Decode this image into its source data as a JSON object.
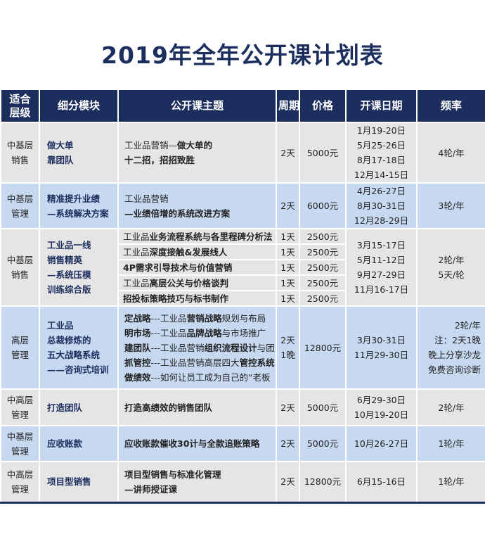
{
  "title": "2019年全年公开课计划表",
  "header": [
    "适合层级",
    "细分模块",
    "公开课主题",
    "周期",
    "价格",
    "开课日期",
    "频率"
  ],
  "rows": [
    {
      "shade": "gray",
      "level": [
        "中基层",
        "销售"
      ],
      "module": [
        "做大单",
        "靠团队"
      ],
      "theme": [
        [
          {
            "text": "工业品营销—"
          },
          {
            "text": "做大单的",
            "bold": true
          }
        ],
        [
          {
            "text": "十二招，招招致胜",
            "bold": true
          }
        ]
      ],
      "duration": [
        "2天"
      ],
      "price": "5000元",
      "dates": [
        "1月19-20日",
        "5月25-26日",
        "8月17-18日",
        "12月14-15日"
      ],
      "freq": [
        "4轮/年"
      ]
    },
    {
      "shade": "blue",
      "level": [
        "中基层",
        "管理"
      ],
      "module": [
        "精准提升业绩",
        "—系统解决方案"
      ],
      "theme": [
        [
          {
            "text": " 工业品营销"
          }
        ],
        [
          {
            "text": "—业绩倍增的系统改进方案",
            "bold": true
          }
        ]
      ],
      "duration": [
        "2天"
      ],
      "price": "6000元",
      "dates": [
        "4月26-27日",
        "8月30-31日",
        "12月28-29日"
      ],
      "freq": [
        "3轮/年"
      ]
    },
    {
      "shade": "gray",
      "level": [
        "中基层",
        "销售"
      ],
      "module": [
        "工业品一线",
        "销售精英",
        "—系统压模",
        "训练综合版"
      ],
      "sessions": [
        {
          "theme": [
            {
              "text": "工业品"
            },
            {
              "text": "业务流程系统与各里程碑分析法",
              "bold": true
            }
          ],
          "duration": "1天",
          "price": "2500元"
        },
        {
          "theme": [
            {
              "text": "工业品"
            },
            {
              "text": "深度接触&发展线人",
              "bold": true
            }
          ],
          "duration": "1天",
          "price": "2500元"
        },
        {
          "theme": [
            {
              "text": "4P需求引导技术与价值营销",
              "bold": true
            }
          ],
          "duration": "1天",
          "price": "2500元"
        },
        {
          "theme": [
            {
              "text": "工业品"
            },
            {
              "text": "高层公关与价格谈判",
              "bold": true
            }
          ],
          "duration": "1天",
          "price": "2500元"
        },
        {
          "theme": [
            {
              "text": "招投标策略技巧与标书制作",
              "bold": true
            }
          ],
          "duration": "1天",
          "price": "2500元"
        }
      ],
      "dates": [
        "3月15-17日",
        "5月11-12日",
        "9月27-29日",
        "11月16-17日"
      ],
      "freq": [
        "2轮/年",
        "5天/轮"
      ]
    },
    {
      "shade": "blue",
      "level": [
        "高层",
        "管理"
      ],
      "module": [
        "工业品",
        "总裁修炼的",
        "五大战略系统",
        "——咨询式培训"
      ],
      "theme": [
        [
          {
            "text": "定战略",
            "bold": true
          },
          {
            "text": "---工业品"
          },
          {
            "text": "营销战略",
            "bold": true
          },
          {
            "text": "规划与布局"
          }
        ],
        [
          {
            "text": "明市场",
            "bold": true
          },
          {
            "text": "---工业品"
          },
          {
            "text": "品牌战略",
            "bold": true
          },
          {
            "text": "与市场推广"
          }
        ],
        [
          {
            "text": "建团队",
            "bold": true
          },
          {
            "text": "---工业品营销"
          },
          {
            "text": "组织流程设计",
            "bold": true
          },
          {
            "text": "与团队管控"
          }
        ],
        [
          {
            "text": "抓管控",
            "bold": true
          },
          {
            "text": "---工业品营销高层四大"
          },
          {
            "text": "管控系统",
            "bold": true
          }
        ],
        [
          {
            "text": "做绩效",
            "bold": true
          },
          {
            "text": "---如何让员工成为自己的“老板"
          }
        ]
      ],
      "duration": [
        "2天",
        "1晚"
      ],
      "price": "12800元",
      "dates": [
        "3月30-31日",
        "11月29-30日"
      ],
      "freq": [
        "2轮/年",
        "注：2天1晚",
        "晚上分享沙龙",
        "免费咨询诊断"
      ]
    },
    {
      "shade": "gray",
      "level": [
        "中高层",
        "管理"
      ],
      "module": [
        "打造团队"
      ],
      "theme": [
        [
          {
            "text": "打造高绩效的销售团队",
            "bold": true
          }
        ]
      ],
      "duration": [
        "2天"
      ],
      "price": "5000元",
      "dates": [
        "6月29-30日",
        "10月19-20日"
      ],
      "freq": [
        "2轮/年"
      ]
    },
    {
      "shade": "blue",
      "level": [
        "中基层",
        "管理"
      ],
      "module": [
        "应收账款"
      ],
      "theme": [
        [
          {
            "text": "应收账款催收30计与全款追账策略",
            "bold": true
          }
        ]
      ],
      "duration": [
        "2天"
      ],
      "price": "5000元",
      "dates": [
        "10月26-27日"
      ],
      "freq": [
        "1轮/年"
      ]
    },
    {
      "shade": "gray",
      "level": [
        "中高层",
        "管理"
      ],
      "module": [
        "项目型销售"
      ],
      "theme": [
        [
          {
            "text": "项目型销售与标准化管理",
            "bold": true
          }
        ],
        [
          {
            "text": "—讲师授证课",
            "bold": true
          }
        ]
      ],
      "duration": [
        "2天"
      ],
      "price": "12800元",
      "dates": [
        "6月15-16日"
      ],
      "freq": [
        "1轮/年"
      ]
    }
  ]
}
